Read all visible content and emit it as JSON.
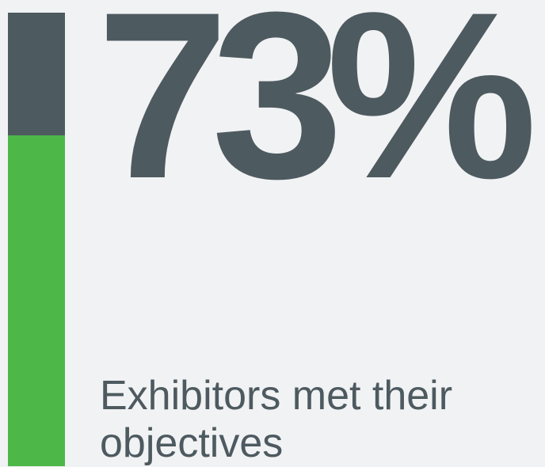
{
  "stat": {
    "value": "73%",
    "fraction": 0.73,
    "caption": "Exhibitors met their objectives"
  },
  "colors": {
    "background": "#f1f2f4",
    "primary": "#4d5a60",
    "accent": "#4db848"
  }
}
